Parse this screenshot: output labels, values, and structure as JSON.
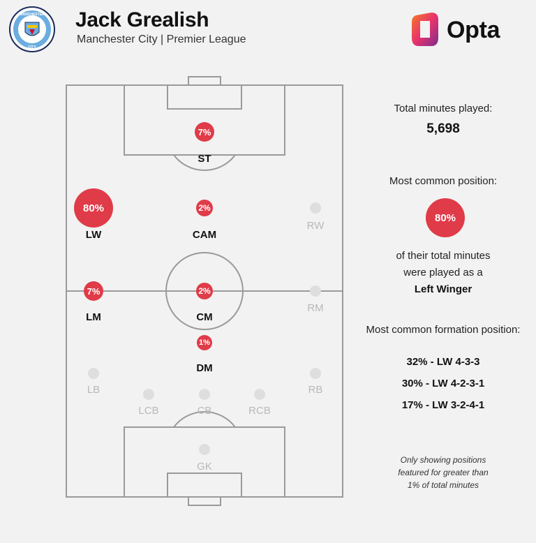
{
  "header": {
    "player_name": "Jack Grealish",
    "club": "Manchester City",
    "competition": "Premier League",
    "separator": "|",
    "crest_text_top": "MANCHESTER",
    "crest_text_bottom": "CITY",
    "brand": "Opta"
  },
  "colors": {
    "accent": "#e03b48",
    "background": "#f2f2f2",
    "crest_blue": "#6caddf",
    "crest_navy": "#1c2c5b",
    "opta_orange": "#f47b20",
    "opta_purple": "#7b2d8e"
  },
  "positions": [
    {
      "key": "ST",
      "label": "ST",
      "pct": 7,
      "value_text": "7%",
      "active": true
    },
    {
      "key": "LW",
      "label": "LW",
      "pct": 80,
      "value_text": "80%",
      "active": true
    },
    {
      "key": "CAM",
      "label": "CAM",
      "pct": 2,
      "value_text": "2%",
      "active": true
    },
    {
      "key": "RW",
      "label": "RW",
      "pct": 0,
      "value_text": "",
      "active": false
    },
    {
      "key": "LM",
      "label": "LM",
      "pct": 7,
      "value_text": "7%",
      "active": true
    },
    {
      "key": "CM",
      "label": "CM",
      "pct": 2,
      "value_text": "2%",
      "active": true
    },
    {
      "key": "RM",
      "label": "RM",
      "pct": 0,
      "value_text": "",
      "active": false
    },
    {
      "key": "DM",
      "label": "DM",
      "pct": 1,
      "value_text": "1%",
      "active": true
    },
    {
      "key": "LB",
      "label": "LB",
      "pct": 0,
      "value_text": "",
      "active": false
    },
    {
      "key": "RB",
      "label": "RB",
      "pct": 0,
      "value_text": "",
      "active": false
    },
    {
      "key": "LCB",
      "label": "LCB",
      "pct": 0,
      "value_text": "",
      "active": false
    },
    {
      "key": "CB",
      "label": "CB",
      "pct": 0,
      "value_text": "",
      "active": false
    },
    {
      "key": "RCB",
      "label": "RCB",
      "pct": 0,
      "value_text": "",
      "active": false
    },
    {
      "key": "GK",
      "label": "GK",
      "pct": 0,
      "value_text": "",
      "active": false
    }
  ],
  "sidebar": {
    "total_minutes_label": "Total minutes played:",
    "total_minutes_value": "5,698",
    "most_common_label": "Most common position:",
    "most_common_pct": "80%",
    "most_common_desc_1": "of their total minutes",
    "most_common_desc_2": "were played as a",
    "most_common_position": "Left Winger",
    "formation_label": "Most common formation position:",
    "formations": [
      "32% - LW 4-3-3",
      "30% - LW 4-2-3-1",
      "17% - LW 3-2-4-1"
    ],
    "note_1": "Only showing positions",
    "note_2": "featured for greater than",
    "note_3": "1% of total minutes"
  }
}
